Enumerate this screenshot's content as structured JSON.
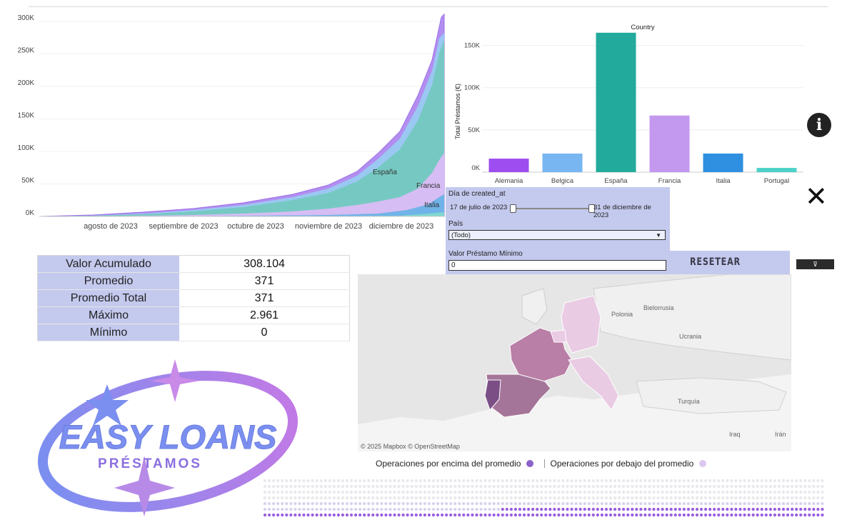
{
  "area_chart": {
    "type": "area",
    "y_ticks": [
      "0K",
      "50K",
      "100K",
      "150K",
      "200K",
      "250K",
      "300K"
    ],
    "ylim": [
      0,
      300000
    ],
    "x_ticks": [
      "agosto de 2023",
      "septiembre de 2023",
      "octubre de 2023",
      "noviembre de 2023",
      "diciembre de 2023"
    ],
    "labels": [
      "España",
      "Francia",
      "Italia"
    ]
  },
  "chart_data": {
    "type": "bar",
    "title": "Country",
    "ylabel": "Total Préstamos (€)",
    "categories": [
      "Alemania",
      "Belgica",
      "España",
      "Francia",
      "Italia",
      "Portugal"
    ],
    "values": [
      16000,
      22000,
      165000,
      67000,
      22000,
      5000
    ],
    "ylim": [
      0,
      175000
    ],
    "y_ticks": [
      "0K",
      "50K",
      "100K",
      "150K"
    ],
    "colors": [
      "#9e4df0",
      "#77b6f0",
      "#22aa9c",
      "#c398ef",
      "#2f8fe0",
      "#4dd0c8"
    ]
  },
  "filters": {
    "date_label": "Día de created_at",
    "date_start": "17 de julio de 2023",
    "date_end": "31 de diciembre de 2023",
    "country_label": "País",
    "country_value": "(Todo)",
    "min_label": "Valor Préstamo Mínimo",
    "min_value": "0"
  },
  "reset_label": "RESETEAR",
  "download_label": "⊽",
  "info_label": "i",
  "close_label": "✕",
  "stats": [
    {
      "k": "Valor Acumulado",
      "v": "308.104"
    },
    {
      "k": "Promedio",
      "v": "371"
    },
    {
      "k": "Promedio Total",
      "v": "371"
    },
    {
      "k": "Máximo",
      "v": "2.961"
    },
    {
      "k": "Mínimo",
      "v": "0"
    }
  ],
  "logo": {
    "main": "EASY LOANS",
    "sub": "PRÉSTAMOS"
  },
  "map": {
    "attribution": "© 2025 Mapbox  © OpenStreetMap",
    "places": [
      "Polonia",
      "Bielorrusia",
      "Ucrania",
      "Turquía",
      "Iraq",
      "Irán"
    ],
    "above_color": "#7b4f86",
    "below_color": "#eacbe4"
  },
  "legend": {
    "above": "Operaciones por encima del promedio",
    "below": "Operaciones por debajo del promedio",
    "above_color": "#8a62c9",
    "below_color": "#dcc8ef"
  }
}
